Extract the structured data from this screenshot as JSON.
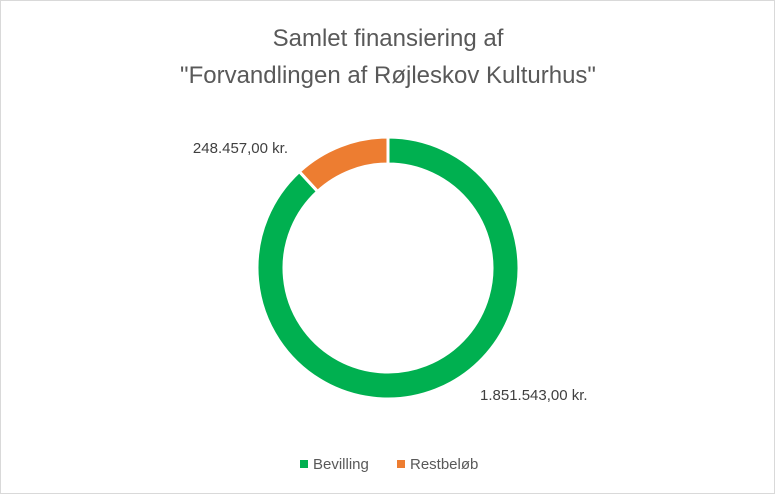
{
  "chart_data": {
    "type": "pie",
    "variant": "doughnut",
    "title_lines": [
      "Samlet finansiering af",
      "\"Forvandlingen af Røjleskov Kulturhus\""
    ],
    "series": [
      {
        "name": "Bevilling",
        "value": 1851543.0,
        "label": "1.851.543,00 kr.",
        "color": "#00b050"
      },
      {
        "name": "Restbeløb",
        "value": 248457.0,
        "label": "248.457,00 kr.",
        "color": "#ed7d31"
      }
    ],
    "legend_position": "bottom",
    "start_angle_deg": 0,
    "direction": "clockwise"
  }
}
